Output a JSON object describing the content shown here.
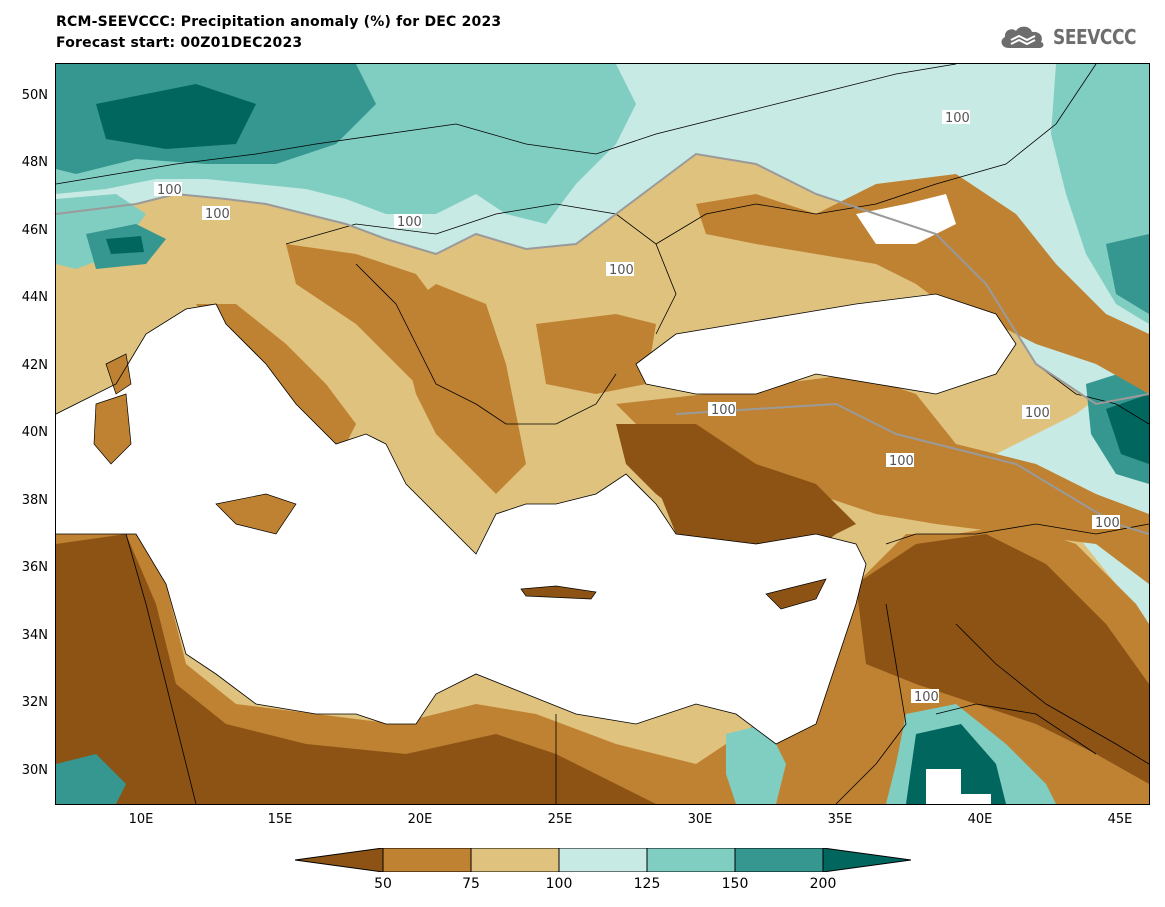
{
  "header": {
    "title": "RCM-SEEVCCC: Precipitation anomaly (%) for DEC 2023",
    "subtitle": "Forecast start: 00Z01DEC2023"
  },
  "logo": {
    "text": "SEEVCCC",
    "icon": "cloud-icon"
  },
  "colors": {
    "lt50": "#8c5315",
    "c50_75": "#bf8232",
    "c75_100": "#dfc27d",
    "c100_125": "#c7eae5",
    "c125_150": "#80cdc1",
    "c150_200": "#35978f",
    "gt200": "#01665e",
    "sea": "#ffffff",
    "contour": "#9a9a9a",
    "border": "#000000"
  },
  "map": {
    "lat_labels": [
      "50N",
      "48N",
      "46N",
      "44N",
      "42N",
      "40N",
      "38N",
      "36N",
      "34N",
      "32N",
      "30N"
    ],
    "lon_labels": [
      "10E",
      "15E",
      "20E",
      "25E",
      "30E",
      "35E",
      "40E",
      "45E"
    ],
    "contour_labels": [
      "100",
      "100",
      "100",
      "100",
      "100",
      "100",
      "100",
      "100",
      "100",
      "100"
    ]
  },
  "colorbar": {
    "labels": [
      "50",
      "75",
      "100",
      "125",
      "150",
      "200"
    ]
  }
}
